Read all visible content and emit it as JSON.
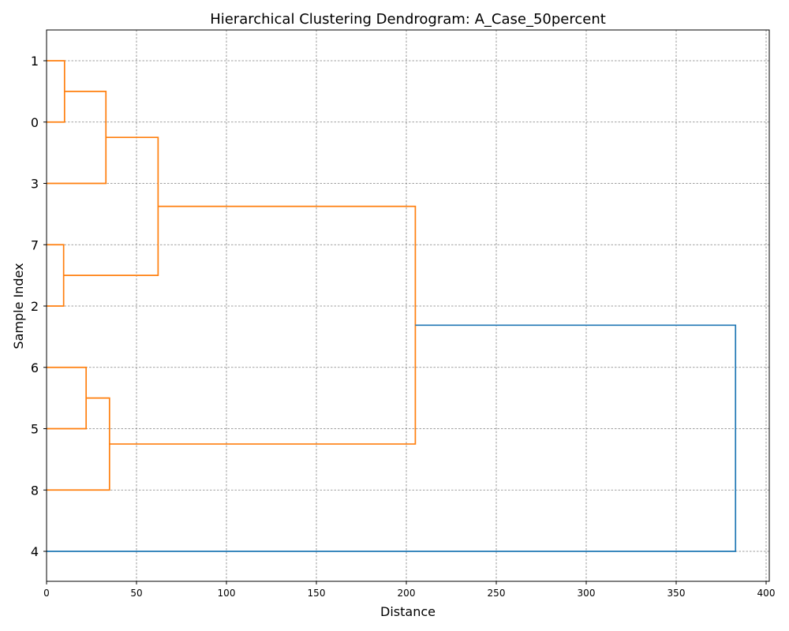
{
  "chart_data": {
    "type": "dendrogram",
    "orientation": "horizontal",
    "title": "Hierarchical Clustering Dendrogram: A_Case_50percent",
    "xlabel": "Distance",
    "ylabel": "Sample Index",
    "xlim": [
      0,
      402
    ],
    "xticks": [
      0,
      50,
      100,
      150,
      200,
      250,
      300,
      350,
      400
    ],
    "leaf_order": [
      "1",
      "0",
      "3",
      "7",
      "2",
      "6",
      "5",
      "8",
      "4"
    ],
    "grid": true,
    "colors": {
      "cluster": "#ff7f0e",
      "root": "#1f77b4"
    },
    "merges": [
      {
        "id": "n1",
        "members": [
          "1",
          "0"
        ],
        "distance": 10,
        "color": "cluster"
      },
      {
        "id": "n2",
        "members": [
          "n1",
          "3"
        ],
        "distance": 33,
        "color": "cluster"
      },
      {
        "id": "n3",
        "members": [
          "7",
          "2"
        ],
        "distance": 9.5,
        "color": "cluster"
      },
      {
        "id": "n4",
        "members": [
          "n2",
          "n3"
        ],
        "distance": 62,
        "color": "cluster"
      },
      {
        "id": "n5",
        "members": [
          "6",
          "5"
        ],
        "distance": 22,
        "color": "cluster"
      },
      {
        "id": "n6",
        "members": [
          "n5",
          "8"
        ],
        "distance": 35,
        "color": "cluster"
      },
      {
        "id": "n7",
        "members": [
          "n4",
          "n6"
        ],
        "distance": 205,
        "color": "cluster"
      },
      {
        "id": "n8",
        "members": [
          "n7",
          "4"
        ],
        "distance": 383,
        "color": "root"
      }
    ]
  }
}
